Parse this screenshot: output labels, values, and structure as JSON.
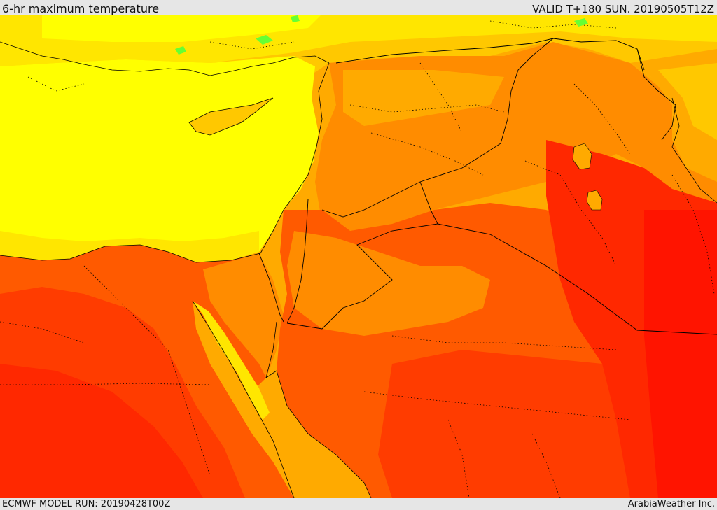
{
  "header": {
    "title": "6-hr maximum temperature",
    "valid": "VALID T+180 SUN. 20190505T12Z"
  },
  "footer": {
    "model_run": "ECMWF MODEL RUN: 20190428T00Z",
    "credit": "ArabiaWeather Inc."
  },
  "colors": {
    "sea_mediterranean": "#ffff00",
    "pale_yellow": "#ffe600",
    "light_orange": "#ffc800",
    "orange": "#ffaa00",
    "dark_orange": "#ff8c00",
    "red_orange": "#ff5a00",
    "red": "#ff2800",
    "deep_red": "#ff1400",
    "green_patch": "#66ff33",
    "border_line": "#000000"
  }
}
